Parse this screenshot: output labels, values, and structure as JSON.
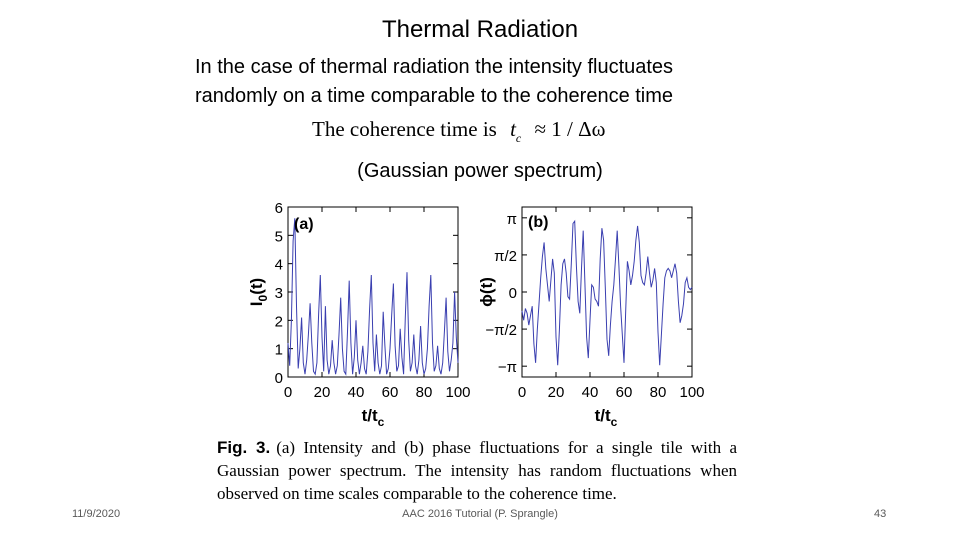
{
  "slide": {
    "title": "Thermal Radiation",
    "intro_line1": "In the case of thermal radiation the intensity fluctuates",
    "intro_line2": "randomly on a  time comparable to the coherence time",
    "formula": {
      "prefix": "The coherence time is",
      "symbol": "t",
      "subscript": "c",
      "relation": "≈ 1 / Δω"
    },
    "subcaption": "(Gaussian power spectrum)"
  },
  "figure": {
    "caption_label": "Fig. 3.",
    "caption_text": "(a) Intensity and (b) phase fluctuations for a single tile with a Gaussian power spectrum. The intensity has random fluctuations when observed on time scales comparable to the coherence time."
  },
  "footer": {
    "date": "11/9/2020",
    "center": "AAC 2016 Tutorial (P. Sprangle)",
    "page": "43"
  },
  "chart_data": [
    {
      "type": "line",
      "panel_label": "(a)",
      "xlabel": "t/t",
      "xlabel_sub": "c",
      "ylabel": "I",
      "ylabel_sub": "0",
      "ylabel_suffix": "(t)",
      "xlim": [
        0,
        100
      ],
      "ylim": [
        0,
        6
      ],
      "xticks": [
        "0",
        "20",
        "40",
        "60",
        "80",
        "100"
      ],
      "yticks": [
        "0",
        "1",
        "2",
        "3",
        "4",
        "5",
        "6"
      ],
      "line_color": "#3a3fb0",
      "x": [
        0,
        1,
        2,
        3,
        4,
        5,
        6,
        7,
        8,
        9,
        10,
        11,
        12,
        13,
        14,
        15,
        16,
        17,
        18,
        19,
        20,
        21,
        22,
        23,
        24,
        25,
        26,
        27,
        28,
        29,
        30,
        31,
        32,
        33,
        34,
        35,
        36,
        37,
        38,
        39,
        40,
        41,
        42,
        43,
        44,
        45,
        46,
        47,
        48,
        49,
        50,
        51,
        52,
        53,
        54,
        55,
        56,
        57,
        58,
        59,
        60,
        61,
        62,
        63,
        64,
        65,
        66,
        67,
        68,
        69,
        70,
        71,
        72,
        73,
        74,
        75,
        76,
        77,
        78,
        79,
        80,
        81,
        82,
        83,
        84,
        85,
        86,
        87,
        88,
        89,
        90,
        91,
        92,
        93,
        94,
        95,
        96,
        97,
        98,
        99,
        100
      ],
      "y": [
        1.2,
        0.4,
        2.0,
        4.8,
        5.6,
        2.5,
        0.3,
        1.0,
        2.1,
        0.5,
        0.1,
        0.6,
        1.5,
        2.6,
        1.2,
        0.2,
        0.1,
        0.5,
        2.2,
        3.6,
        1.4,
        0.2,
        2.5,
        0.6,
        0.1,
        0.4,
        1.3,
        0.5,
        0.1,
        0.4,
        1.5,
        2.8,
        1.0,
        0.2,
        0.1,
        1.6,
        3.4,
        1.2,
        0.1,
        0.7,
        2.0,
        0.6,
        0.1,
        0.5,
        1.1,
        0.3,
        0.1,
        0.9,
        2.4,
        3.6,
        1.2,
        0.2,
        1.5,
        0.5,
        0.1,
        0.4,
        2.3,
        1.1,
        0.1,
        0.3,
        1.0,
        2.2,
        3.3,
        1.1,
        0.2,
        0.4,
        1.7,
        0.7,
        0.1,
        2.1,
        3.7,
        1.3,
        0.2,
        0.5,
        1.5,
        0.4,
        0.1,
        0.6,
        1.8,
        0.5,
        0.1,
        0.3,
        1.0,
        2.5,
        3.6,
        1.2,
        0.2,
        0.4,
        1.1,
        0.3,
        0.1,
        0.5,
        1.6,
        2.8,
        0.9,
        0.2,
        0.6,
        1.2,
        3.0,
        1.4,
        0.5
      ]
    },
    {
      "type": "line",
      "panel_label": "(b)",
      "xlabel": "t/t",
      "xlabel_sub": "c",
      "ylabel": "ϕ(t)",
      "xlim": [
        0,
        100
      ],
      "ylim": [
        -3.6,
        3.6
      ],
      "xticks": [
        "0",
        "20",
        "40",
        "60",
        "80",
        "100"
      ],
      "yticks": [
        "−π",
        "−π/2",
        "0",
        "π/2",
        "π"
      ],
      "ytick_values": [
        -3.1416,
        -1.5708,
        0,
        1.5708,
        3.1416
      ],
      "line_color": "#3a3fb0",
      "x": [
        0,
        1,
        2,
        3,
        4,
        5,
        6,
        7,
        8,
        9,
        10,
        11,
        12,
        13,
        14,
        15,
        16,
        17,
        18,
        19,
        20,
        21,
        22,
        23,
        24,
        25,
        26,
        27,
        28,
        29,
        30,
        31,
        32,
        33,
        34,
        35,
        36,
        37,
        38,
        39,
        40,
        41,
        42,
        43,
        44,
        45,
        46,
        47,
        48,
        49,
        50,
        51,
        52,
        53,
        54,
        55,
        56,
        57,
        58,
        59,
        60,
        61,
        62,
        63,
        64,
        65,
        66,
        67,
        68,
        69,
        70,
        71,
        72,
        73,
        74,
        75,
        76,
        77,
        78,
        79,
        80,
        81,
        82,
        83,
        84,
        85,
        86,
        87,
        88,
        89,
        90,
        91,
        92,
        93,
        94,
        95,
        96,
        97,
        98,
        99,
        100
      ],
      "y": [
        -0.8,
        -1.2,
        -0.7,
        -0.9,
        -1.4,
        -1.0,
        -0.6,
        -2.2,
        -3.0,
        -1.6,
        -0.5,
        0.6,
        1.5,
        2.1,
        1.0,
        0.3,
        -0.4,
        0.5,
        1.4,
        0.8,
        -1.9,
        -3.1,
        -1.6,
        0.3,
        1.2,
        1.4,
        0.8,
        -0.2,
        -0.3,
        1.2,
        2.9,
        3.0,
        1.1,
        -0.4,
        -0.9,
        1.0,
        2.6,
        0.4,
        -1.9,
        -2.8,
        -1.2,
        0.3,
        0.2,
        -0.3,
        -0.4,
        -0.6,
        1.4,
        2.7,
        2.2,
        0.2,
        -2.0,
        -2.7,
        -1.4,
        -0.4,
        0.3,
        1.4,
        2.6,
        1.1,
        -0.6,
        -1.8,
        -3.0,
        -0.8,
        1.3,
        0.9,
        0.3,
        0.7,
        1.3,
        2.2,
        2.8,
        2.1,
        0.7,
        0.4,
        0.3,
        0.8,
        1.5,
        0.8,
        0.2,
        0.5,
        1.0,
        0.4,
        -1.7,
        -3.1,
        -1.8,
        -0.5,
        0.6,
        0.9,
        1.0,
        0.9,
        0.6,
        0.9,
        1.2,
        0.8,
        -0.4,
        -1.3,
        -1.0,
        -0.5,
        0.4,
        0.6,
        0.2,
        0.1,
        0.2
      ]
    }
  ]
}
